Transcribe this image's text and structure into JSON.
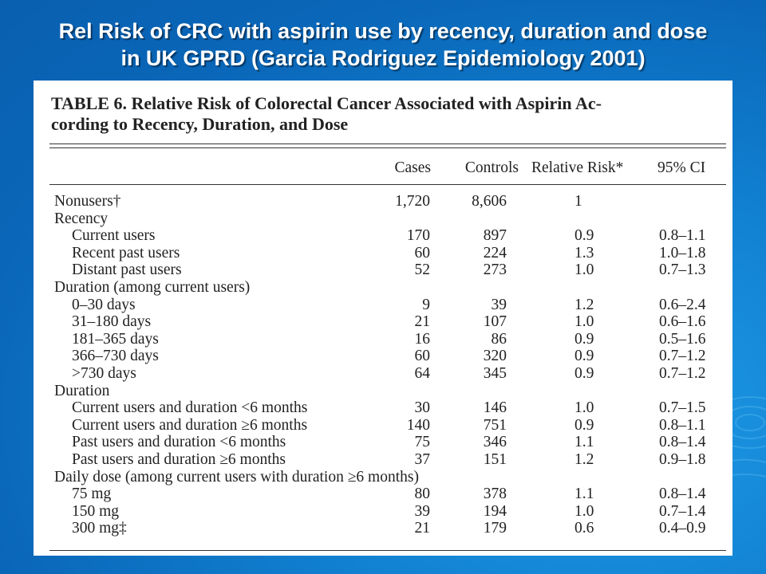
{
  "slide": {
    "title_line1": "Rel Risk of CRC with aspirin use by recency, duration and dose",
    "title_line2": "in UK GPRD (Garcia Rodriguez Epidemiology 2001)",
    "colors": {
      "background": "#0a66b8",
      "title_text": "#ffffff"
    }
  },
  "table": {
    "caption_line1": "TABLE 6.   Relative Risk of Colorectal Cancer Associated with Aspirin Ac-",
    "caption_line2": "cording to Recency, Duration, and Dose",
    "columns": [
      "Cases",
      "Controls",
      "Relative Risk*",
      "95% CI"
    ],
    "rows": [
      {
        "label": "Nonusers†",
        "cases": "1,720",
        "controls": "8,606",
        "rr": "1",
        "ci": ""
      },
      {
        "label": "Recency",
        "cases": "",
        "controls": "",
        "rr": "",
        "ci": ""
      },
      {
        "label": "Current users",
        "cases": "170",
        "controls": "897",
        "rr": "0.9",
        "ci": "0.8–1.1"
      },
      {
        "label": "Recent past users",
        "cases": "60",
        "controls": "224",
        "rr": "1.3",
        "ci": "1.0–1.8"
      },
      {
        "label": "Distant past users",
        "cases": "52",
        "controls": "273",
        "rr": "1.0",
        "ci": "0.7–1.3"
      },
      {
        "label": "Duration (among current users)",
        "cases": "",
        "controls": "",
        "rr": "",
        "ci": ""
      },
      {
        "label": "0–30 days",
        "cases": "9",
        "controls": "39",
        "rr": "1.2",
        "ci": "0.6–2.4"
      },
      {
        "label": "31–180 days",
        "cases": "21",
        "controls": "107",
        "rr": "1.0",
        "ci": "0.6–1.6"
      },
      {
        "label": "181–365 days",
        "cases": "16",
        "controls": "86",
        "rr": "0.9",
        "ci": "0.5–1.6"
      },
      {
        "label": "366–730 days",
        "cases": "60",
        "controls": "320",
        "rr": "0.9",
        "ci": "0.7–1.2"
      },
      {
        "label": ">730 days",
        "cases": "64",
        "controls": "345",
        "rr": "0.9",
        "ci": "0.7–1.2"
      },
      {
        "label": "Duration",
        "cases": "",
        "controls": "",
        "rr": "",
        "ci": ""
      },
      {
        "label": "Current users and duration <6 months",
        "cases": "30",
        "controls": "146",
        "rr": "1.0",
        "ci": "0.7–1.5"
      },
      {
        "label": "Current users and duration ≥6 months",
        "cases": "140",
        "controls": "751",
        "rr": "0.9",
        "ci": "0.8–1.1"
      },
      {
        "label": "Past users and duration <6 months",
        "cases": "75",
        "controls": "346",
        "rr": "1.1",
        "ci": "0.8–1.4"
      },
      {
        "label": "Past users and duration ≥6 months",
        "cases": "37",
        "controls": "151",
        "rr": "1.2",
        "ci": "0.9–1.8"
      },
      {
        "label": "Daily dose (among current users with duration ≥6 months)",
        "cases": "",
        "controls": "",
        "rr": "",
        "ci": ""
      },
      {
        "label": "75 mg",
        "cases": "80",
        "controls": "378",
        "rr": "1.1",
        "ci": "0.8–1.4"
      },
      {
        "label": "150 mg",
        "cases": "39",
        "controls": "194",
        "rr": "1.0",
        "ci": "0.7–1.4"
      },
      {
        "label": "300 mg‡",
        "cases": "21",
        "controls": "179",
        "rr": "0.6",
        "ci": "0.4–0.9"
      }
    ]
  }
}
